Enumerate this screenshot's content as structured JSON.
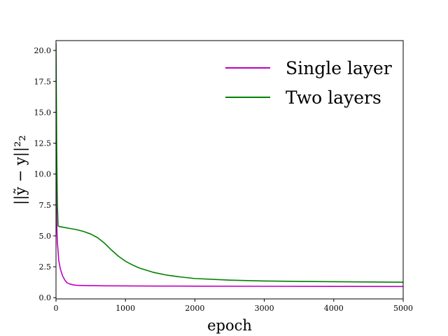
{
  "chart_data": {
    "type": "line",
    "xlabel": "epoch",
    "ylabel": "||ỹ − y||²₂",
    "xlim": [
      0,
      5000
    ],
    "ylim": [
      -0.1,
      20.8
    ],
    "xticks": [
      0,
      1000,
      2000,
      3000,
      4000,
      5000
    ],
    "xtick_labels": [
      "0",
      "1000",
      "2000",
      "3000",
      "4000",
      "5000"
    ],
    "yticks": [
      0,
      2.5,
      5,
      7.5,
      10,
      12.5,
      15,
      17.5,
      20
    ],
    "ytick_labels": [
      "0.0",
      "2.5",
      "5.0",
      "7.5",
      "10.0",
      "12.5",
      "15.0",
      "17.5",
      "20.0"
    ],
    "grid": false,
    "legend_position": "top-right",
    "series": [
      {
        "name": "Single layer",
        "color": "#bf00bf",
        "x": [
          0,
          10,
          20,
          40,
          60,
          80,
          100,
          130,
          160,
          200,
          250,
          300,
          400,
          500,
          700,
          1000,
          1500,
          2000,
          3000,
          4000,
          5000
        ],
        "y": [
          10.0,
          6.0,
          4.5,
          3.0,
          2.4,
          2.0,
          1.7,
          1.4,
          1.2,
          1.1,
          1.03,
          1.0,
          0.98,
          0.97,
          0.96,
          0.95,
          0.94,
          0.93,
          0.92,
          0.91,
          0.9
        ]
      },
      {
        "name": "Two layers",
        "color": "#008000",
        "x": [
          0,
          10,
          20,
          30,
          50,
          100,
          200,
          300,
          400,
          500,
          600,
          700,
          800,
          900,
          1000,
          1100,
          1200,
          1400,
          1600,
          1800,
          2000,
          2500,
          3000,
          3500,
          4000,
          4500,
          5000
        ],
        "y": [
          20.6,
          12.0,
          7.5,
          5.8,
          5.75,
          5.7,
          5.6,
          5.5,
          5.35,
          5.15,
          4.85,
          4.4,
          3.85,
          3.35,
          2.95,
          2.65,
          2.4,
          2.05,
          1.82,
          1.67,
          1.55,
          1.42,
          1.35,
          1.31,
          1.29,
          1.27,
          1.25
        ]
      }
    ]
  }
}
